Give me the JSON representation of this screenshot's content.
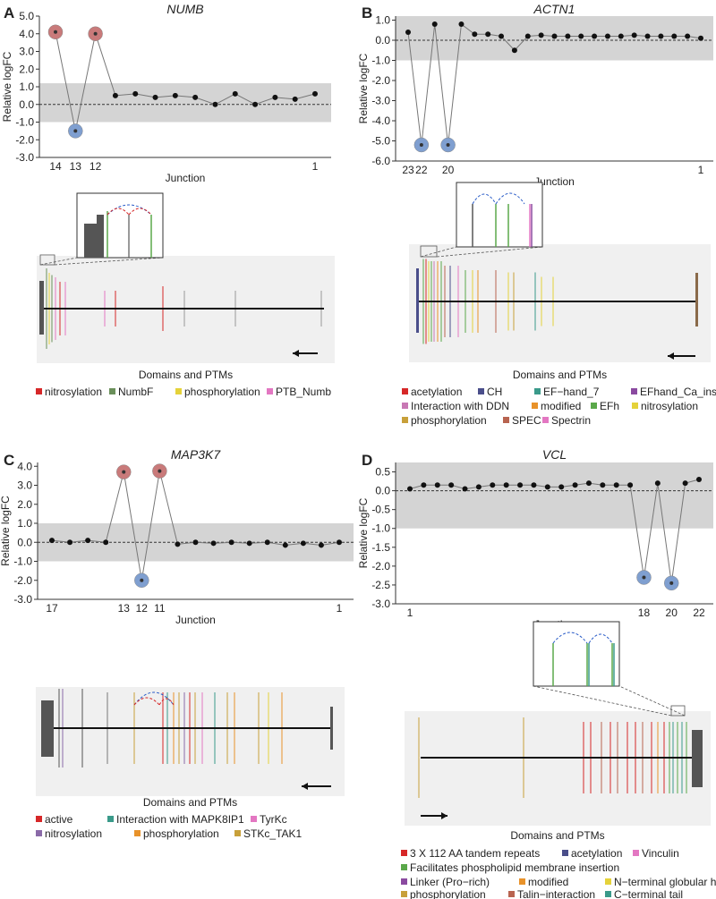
{
  "panels": [
    {
      "id": "A",
      "letter": "A",
      "gene": "NUMB",
      "ylabel": "Relative logFC",
      "xlabel": "Junction",
      "yticks": [
        "5.0",
        "4.0",
        "3.0",
        "2.0",
        "1.0",
        "0.0",
        "-1.0",
        "-2.0",
        "-3.0"
      ],
      "ytick_values": [
        5,
        4,
        3,
        2,
        1,
        0,
        -1,
        -2,
        -3
      ],
      "ylim": [
        -3.0,
        5.0
      ],
      "band": [
        -1.0,
        1.2
      ],
      "xticks": [
        {
          "x": 1,
          "label": "14"
        },
        {
          "x": 2,
          "label": "13"
        },
        {
          "x": 3,
          "label": "12"
        },
        {
          "x": 14,
          "label": "1"
        }
      ],
      "points": [
        {
          "x": 1,
          "y": 4.1,
          "type": "up"
        },
        {
          "x": 2,
          "y": -1.5,
          "type": "down"
        },
        {
          "x": 3,
          "y": 4.0,
          "type": "up"
        },
        {
          "x": 4,
          "y": 0.5,
          "type": "normal"
        },
        {
          "x": 5,
          "y": 0.6,
          "type": "normal"
        },
        {
          "x": 6,
          "y": 0.4,
          "type": "normal"
        },
        {
          "x": 7,
          "y": 0.5,
          "type": "normal"
        },
        {
          "x": 8,
          "y": 0.4,
          "type": "normal"
        },
        {
          "x": 9,
          "y": 0.0,
          "type": "normal"
        },
        {
          "x": 10,
          "y": 0.6,
          "type": "normal"
        },
        {
          "x": 11,
          "y": 0.0,
          "type": "normal"
        },
        {
          "x": 12,
          "y": 0.4,
          "type": "normal"
        },
        {
          "x": 13,
          "y": 0.3,
          "type": "normal"
        },
        {
          "x": 14,
          "y": 0.6,
          "type": "normal"
        }
      ],
      "legend_title": "Domains and PTMs",
      "legend_rows": [
        [
          {
            "label": "nitrosylation",
            "color": "#d62728"
          },
          {
            "label": "NumbF",
            "color": "#6a8f5a"
          },
          {
            "label": "phosphorylation",
            "color": "#e5d23a"
          },
          {
            "label": "PTB_Numb",
            "color": "#e377c2"
          }
        ]
      ]
    },
    {
      "id": "B",
      "letter": "B",
      "gene": "ACTN1",
      "ylabel": "Relative logFC",
      "xlabel": "Junction",
      "yticks": [
        "1.0",
        "0.0",
        "-1.0",
        "-2.0",
        "-3.0",
        "-4.0",
        "-5.0",
        "-6.0"
      ],
      "ytick_values": [
        1,
        0,
        -1,
        -2,
        -3,
        -4,
        -5,
        -6
      ],
      "ylim": [
        -6.0,
        1.2
      ],
      "band": [
        -1.0,
        1.2
      ],
      "xticks": [
        {
          "x": 1,
          "label": "23"
        },
        {
          "x": 2,
          "label": "22"
        },
        {
          "x": 4,
          "label": "20"
        },
        {
          "x": 23,
          "label": "1"
        }
      ],
      "points": [
        {
          "x": 1,
          "y": 0.4,
          "type": "normal"
        },
        {
          "x": 2,
          "y": -5.2,
          "type": "down"
        },
        {
          "x": 3,
          "y": 0.8,
          "type": "normal"
        },
        {
          "x": 4,
          "y": -5.2,
          "type": "down"
        },
        {
          "x": 5,
          "y": 0.8,
          "type": "normal"
        },
        {
          "x": 6,
          "y": 0.3,
          "type": "normal"
        },
        {
          "x": 7,
          "y": 0.3,
          "type": "normal"
        },
        {
          "x": 8,
          "y": 0.2,
          "type": "normal"
        },
        {
          "x": 9,
          "y": -0.5,
          "type": "normal"
        },
        {
          "x": 10,
          "y": 0.2,
          "type": "normal"
        },
        {
          "x": 11,
          "y": 0.25,
          "type": "normal"
        },
        {
          "x": 12,
          "y": 0.2,
          "type": "normal"
        },
        {
          "x": 13,
          "y": 0.2,
          "type": "normal"
        },
        {
          "x": 14,
          "y": 0.2,
          "type": "normal"
        },
        {
          "x": 15,
          "y": 0.2,
          "type": "normal"
        },
        {
          "x": 16,
          "y": 0.2,
          "type": "normal"
        },
        {
          "x": 17,
          "y": 0.2,
          "type": "normal"
        },
        {
          "x": 18,
          "y": 0.25,
          "type": "normal"
        },
        {
          "x": 19,
          "y": 0.2,
          "type": "normal"
        },
        {
          "x": 20,
          "y": 0.2,
          "type": "normal"
        },
        {
          "x": 21,
          "y": 0.2,
          "type": "normal"
        },
        {
          "x": 22,
          "y": 0.2,
          "type": "normal"
        },
        {
          "x": 23,
          "y": 0.1,
          "type": "normal"
        }
      ],
      "legend_title": "Domains and PTMs",
      "legend_rows": [
        [
          {
            "label": "acetylation",
            "color": "#d62728"
          },
          {
            "label": "CH",
            "color": "#4a4e8a"
          },
          {
            "label": "EF−hand_7",
            "color": "#3a9a8a"
          },
          {
            "label": "EFhand_Ca_insen",
            "color": "#8a4aa0"
          }
        ],
        [
          {
            "label": "Interaction with DDN",
            "color": "#c878b4"
          },
          {
            "label": "modified",
            "color": "#e8922a"
          },
          {
            "label": "EFh",
            "color": "#5aa84a"
          },
          {
            "label": "nitrosylation",
            "color": "#e5d23a"
          }
        ],
        [
          {
            "label": "phosphorylation",
            "color": "#c8a03a"
          },
          {
            "label": "SPEC",
            "color": "#b86450"
          },
          {
            "label": "Spectrin",
            "color": "#e377c2"
          }
        ]
      ]
    },
    {
      "id": "C",
      "letter": "C",
      "gene": "MAP3K7",
      "ylabel": "Relative logFC",
      "xlabel": "Junction",
      "yticks": [
        "4.0",
        "3.0",
        "2.0",
        "1.0",
        "0.0",
        "-1.0",
        "-2.0",
        "-3.0"
      ],
      "ytick_values": [
        4,
        3,
        2,
        1,
        0,
        -1,
        -2,
        -3
      ],
      "ylim": [
        -3.0,
        4.2
      ],
      "band": [
        -1.0,
        1.0
      ],
      "xticks": [
        {
          "x": 1,
          "label": "17"
        },
        {
          "x": 5,
          "label": "13"
        },
        {
          "x": 6,
          "label": "12"
        },
        {
          "x": 7,
          "label": "11"
        },
        {
          "x": 17,
          "label": "1"
        }
      ],
      "points": [
        {
          "x": 1,
          "y": 0.1,
          "type": "normal"
        },
        {
          "x": 2,
          "y": 0.0,
          "type": "normal"
        },
        {
          "x": 3,
          "y": 0.1,
          "type": "normal"
        },
        {
          "x": 4,
          "y": 0.0,
          "type": "normal"
        },
        {
          "x": 5,
          "y": 3.7,
          "type": "up"
        },
        {
          "x": 6,
          "y": -2.0,
          "type": "down"
        },
        {
          "x": 7,
          "y": 3.75,
          "type": "up"
        },
        {
          "x": 8,
          "y": -0.1,
          "type": "normal"
        },
        {
          "x": 9,
          "y": 0.0,
          "type": "normal"
        },
        {
          "x": 10,
          "y": -0.05,
          "type": "normal"
        },
        {
          "x": 11,
          "y": 0.0,
          "type": "normal"
        },
        {
          "x": 12,
          "y": -0.05,
          "type": "normal"
        },
        {
          "x": 13,
          "y": 0.0,
          "type": "normal"
        },
        {
          "x": 14,
          "y": -0.15,
          "type": "normal"
        },
        {
          "x": 15,
          "y": -0.05,
          "type": "normal"
        },
        {
          "x": 16,
          "y": -0.15,
          "type": "normal"
        },
        {
          "x": 17,
          "y": 0.0,
          "type": "normal"
        }
      ],
      "legend_title": "Domains and PTMs",
      "legend_rows": [
        [
          {
            "label": "active",
            "color": "#d62728"
          },
          {
            "label": "Interaction with MAPK8IP1",
            "color": "#3a9a8a"
          },
          {
            "label": "TyrKc",
            "color": "#e377c2"
          }
        ],
        [
          {
            "label": "nitrosylation",
            "color": "#8a6aa8"
          },
          {
            "label": "phosphorylation",
            "color": "#e8922a"
          },
          {
            "label": "STKc_TAK1",
            "color": "#c8a03a"
          }
        ]
      ]
    },
    {
      "id": "D",
      "letter": "D",
      "gene": "VCL",
      "ylabel": "Relative logFC",
      "xlabel": "Junction",
      "yticks": [
        "0.5",
        "0.0",
        "-0.5",
        "-1.0",
        "-1.5",
        "-2.0",
        "-2.5",
        "-3.0"
      ],
      "ytick_values": [
        0.5,
        0,
        -0.5,
        -1,
        -1.5,
        -2,
        -2.5,
        -3
      ],
      "ylim": [
        -3.0,
        0.75
      ],
      "band": [
        -1.0,
        0.75
      ],
      "xticks": [
        {
          "x": 1,
          "label": "1"
        },
        {
          "x": 18,
          "label": "18"
        },
        {
          "x": 20,
          "label": "20"
        },
        {
          "x": 22,
          "label": "22"
        }
      ],
      "points": [
        {
          "x": 1,
          "y": 0.05,
          "type": "normal"
        },
        {
          "x": 2,
          "y": 0.15,
          "type": "normal"
        },
        {
          "x": 3,
          "y": 0.15,
          "type": "normal"
        },
        {
          "x": 4,
          "y": 0.15,
          "type": "normal"
        },
        {
          "x": 5,
          "y": 0.05,
          "type": "normal"
        },
        {
          "x": 6,
          "y": 0.1,
          "type": "normal"
        },
        {
          "x": 7,
          "y": 0.15,
          "type": "normal"
        },
        {
          "x": 8,
          "y": 0.15,
          "type": "normal"
        },
        {
          "x": 9,
          "y": 0.15,
          "type": "normal"
        },
        {
          "x": 10,
          "y": 0.15,
          "type": "normal"
        },
        {
          "x": 11,
          "y": 0.1,
          "type": "normal"
        },
        {
          "x": 12,
          "y": 0.1,
          "type": "normal"
        },
        {
          "x": 13,
          "y": 0.15,
          "type": "normal"
        },
        {
          "x": 14,
          "y": 0.2,
          "type": "normal"
        },
        {
          "x": 15,
          "y": 0.15,
          "type": "normal"
        },
        {
          "x": 16,
          "y": 0.15,
          "type": "normal"
        },
        {
          "x": 17,
          "y": 0.15,
          "type": "normal"
        },
        {
          "x": 18,
          "y": -2.3,
          "type": "down"
        },
        {
          "x": 19,
          "y": 0.2,
          "type": "normal"
        },
        {
          "x": 20,
          "y": -2.45,
          "type": "down"
        },
        {
          "x": 21,
          "y": 0.2,
          "type": "normal"
        },
        {
          "x": 22,
          "y": 0.3,
          "type": "normal"
        }
      ],
      "legend_title": "Domains and PTMs",
      "legend_rows": [
        [
          {
            "label": "3 X 112 AA tandem repeats",
            "color": "#d62728"
          },
          {
            "label": "acetylation",
            "color": "#4a4e8a"
          },
          {
            "label": "Vinculin",
            "color": "#e377c2"
          }
        ],
        [
          {
            "label": "Facilitates phospholipid membrane insertion",
            "color": "#5aa84a"
          }
        ],
        [
          {
            "label": "Linker (Pro−rich)",
            "color": "#8a4aa0"
          },
          {
            "label": "modified",
            "color": "#e8922a"
          },
          {
            "label": "N−terminal globular head",
            "color": "#e5d23a"
          }
        ],
        [
          {
            "label": "phosphorylation",
            "color": "#c8a03a"
          },
          {
            "label": "Talin−interaction",
            "color": "#b86450"
          },
          {
            "label": "C−terminal tail",
            "color": "#3a9a8a"
          }
        ]
      ]
    }
  ],
  "colors": {
    "up": "#c97a7a",
    "down": "#7f9fd0",
    "band": "#d4d4d4",
    "track_bg": "#f0f0f0",
    "arc_blue": "#2a5cc8",
    "arc_red": "#d62728"
  }
}
